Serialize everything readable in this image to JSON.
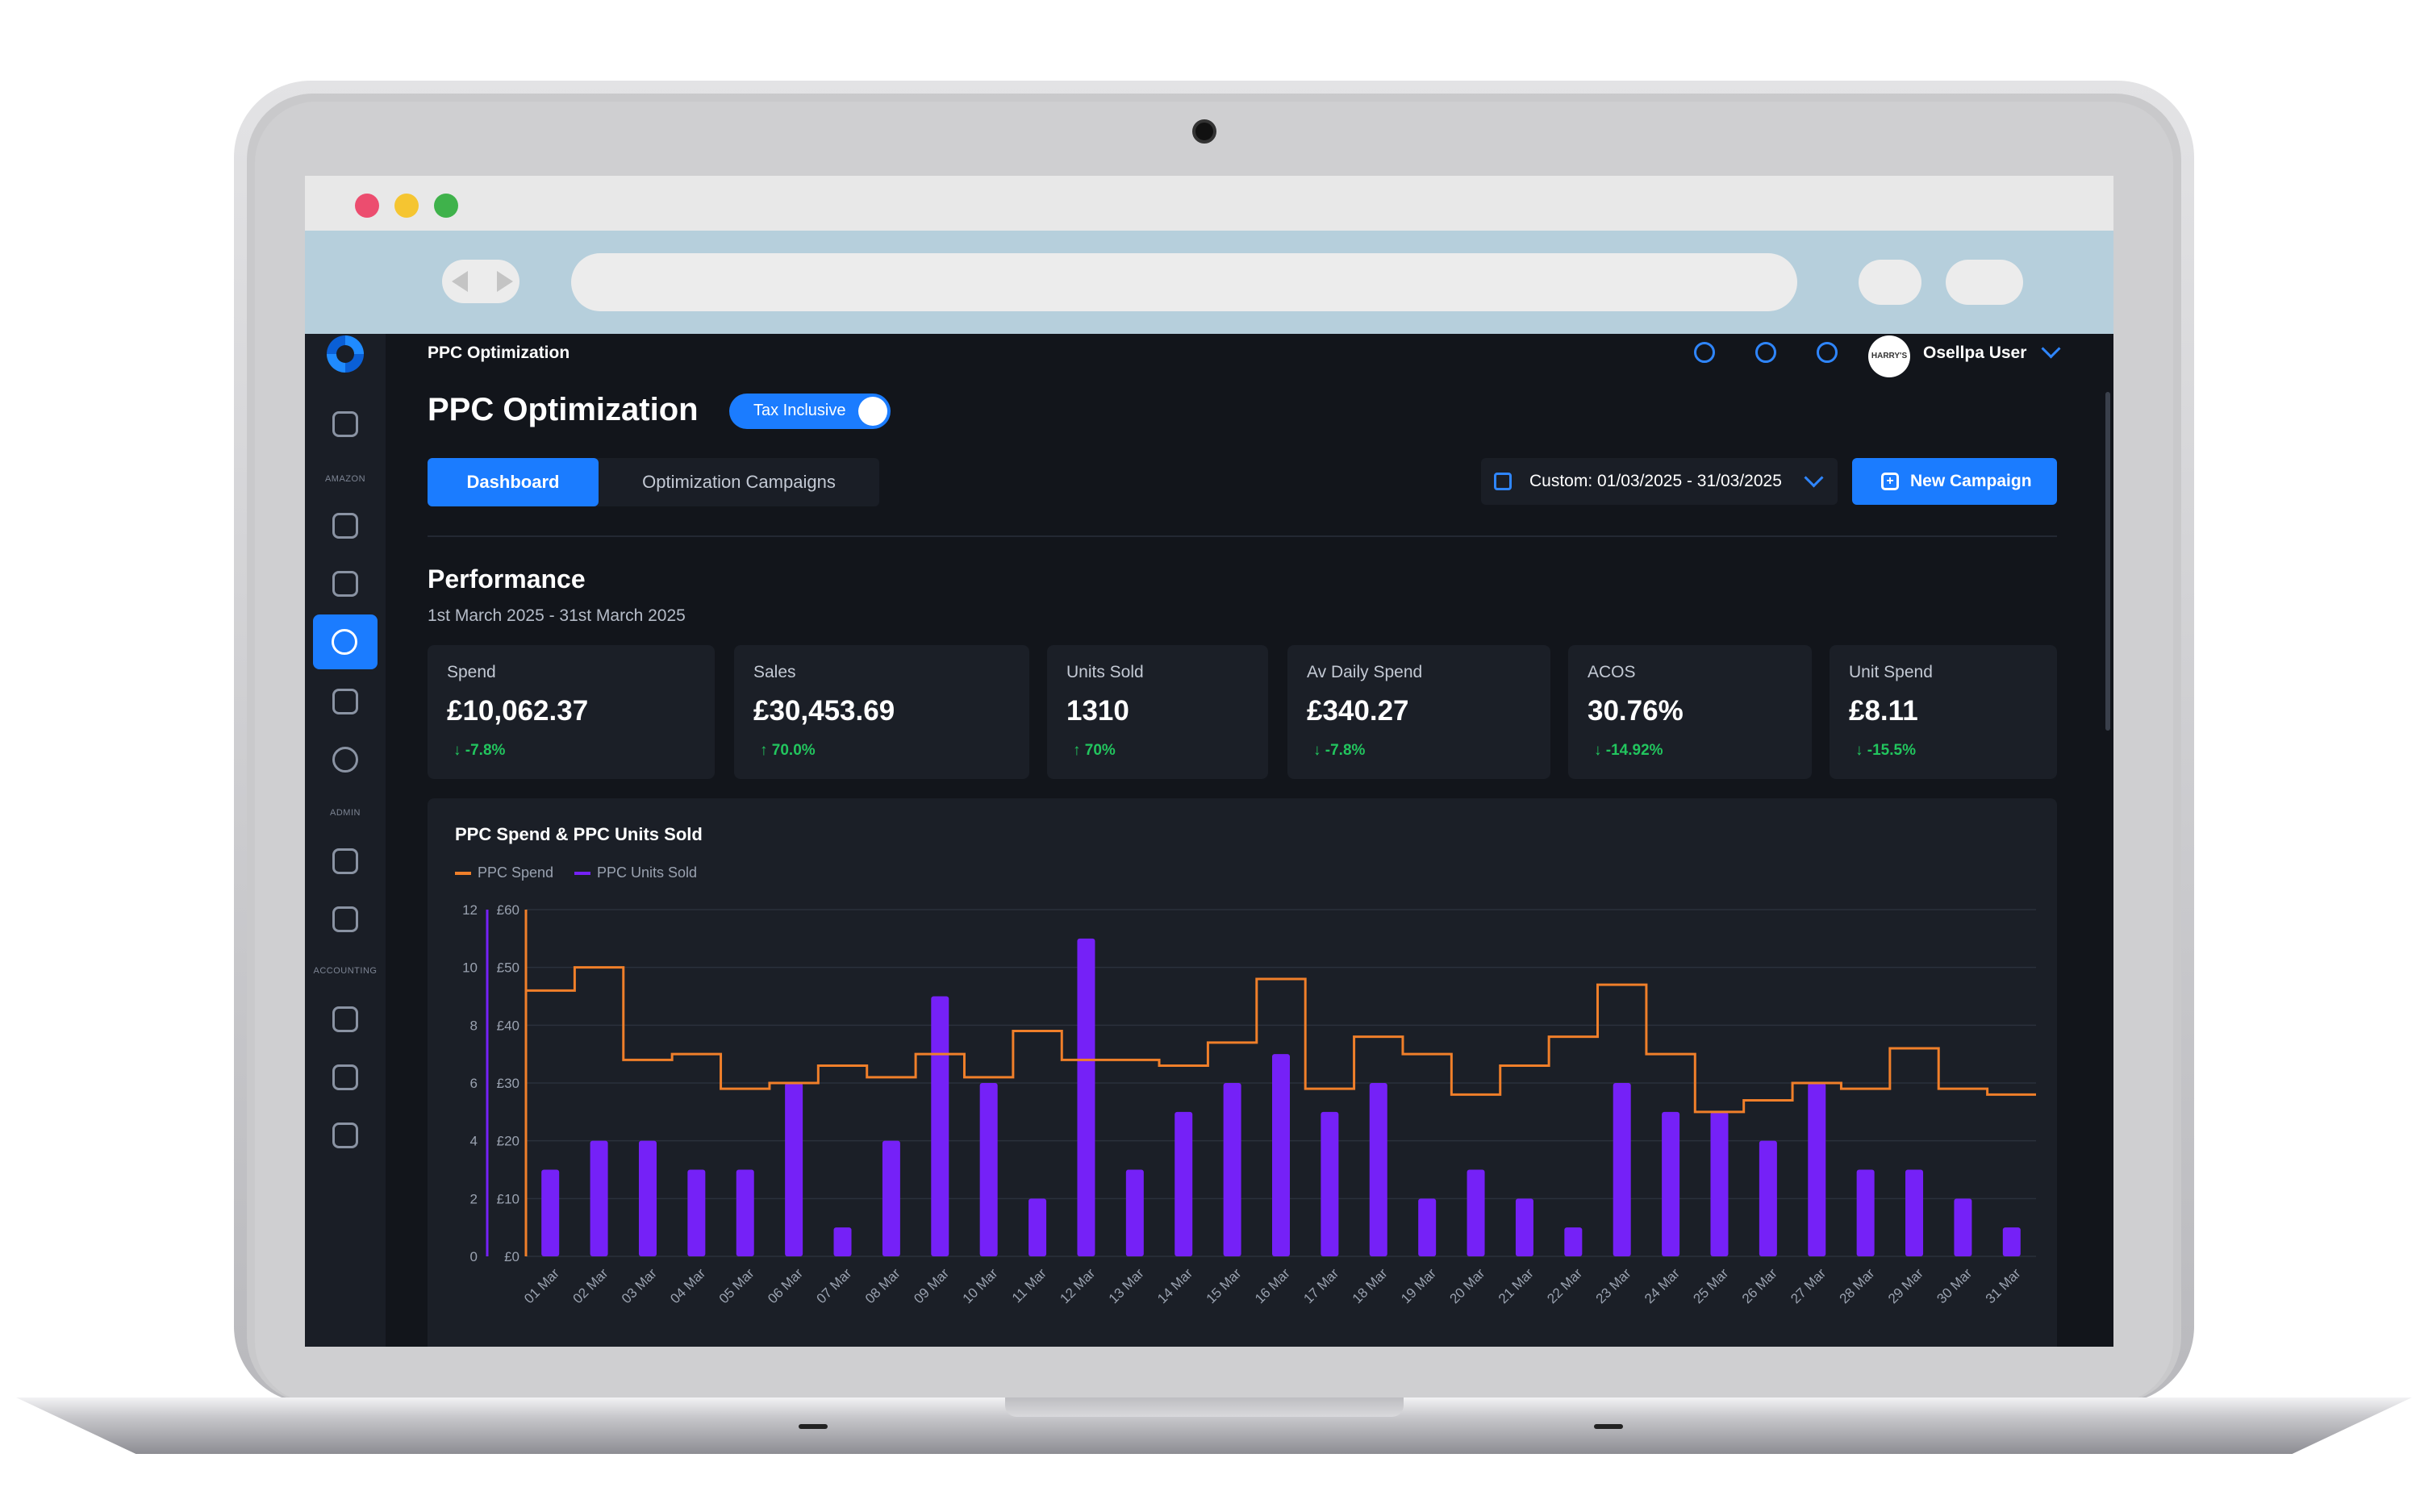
{
  "app": {
    "breadcrumb": "PPC Optimization",
    "page_title": "PPC Optimization",
    "tax_toggle": {
      "label": "Tax Inclusive",
      "on": true
    },
    "user": {
      "name": "Osellpa User",
      "avatar_text": "HARRY'S"
    },
    "sidebar_sections": {
      "amazon": "AMAZON",
      "admin": "ADMIN",
      "accounting": "ACCOUNTING"
    }
  },
  "tabs": [
    {
      "label": "Dashboard",
      "active": true
    },
    {
      "label": "Optimization Campaigns",
      "active": false
    }
  ],
  "date_range": "Custom: 01/03/2025 - 31/03/2025",
  "new_campaign": "New Campaign",
  "performance": {
    "title": "Performance",
    "subtitle": "1st March 2025 - 31st March 2025",
    "cards": [
      {
        "label": "Spend",
        "value": "£10,062.37",
        "delta": "↓ -7.8%"
      },
      {
        "label": "Sales",
        "value": "£30,453.69",
        "delta": "↑ 70.0%"
      },
      {
        "label": "Units Sold",
        "value": "1310",
        "delta": "↑ 70%"
      },
      {
        "label": "Av Daily Spend",
        "value": "£340.27",
        "delta": "↓ -7.8%"
      },
      {
        "label": "ACOS",
        "value": "30.76%",
        "delta": "↓ -14.92%"
      },
      {
        "label": "Unit Spend",
        "value": "£8.11",
        "delta": "↓ -15.5%"
      }
    ]
  },
  "colors": {
    "accent": "#1b7cff",
    "positive": "#22c55e",
    "spend_line": "#f07f2a",
    "units_bar": "#7521f7"
  },
  "chart_data": {
    "type": "bar",
    "title": "PPC Spend & PPC Units Sold",
    "categories": [
      "01 Mar",
      "02 Mar",
      "03 Mar",
      "04 Mar",
      "05 Mar",
      "06 Mar",
      "07 Mar",
      "08 Mar",
      "09 Mar",
      "10 Mar",
      "11 Mar",
      "12 Mar",
      "13 Mar",
      "14 Mar",
      "15 Mar",
      "16 Mar",
      "17 Mar",
      "18 Mar",
      "19 Mar",
      "20 Mar",
      "21 Mar",
      "22 Mar",
      "23 Mar",
      "24 Mar",
      "25 Mar",
      "26 Mar",
      "27 Mar",
      "28 Mar",
      "29 Mar",
      "30 Mar",
      "31 Mar"
    ],
    "series": [
      {
        "name": "PPC Units Sold",
        "type": "bar",
        "axis": "left",
        "values": [
          3,
          4,
          4,
          3,
          3,
          6,
          1,
          4,
          9,
          6,
          2,
          11,
          3,
          5,
          6,
          7,
          5,
          6,
          2,
          3,
          2,
          1,
          6,
          5,
          5,
          4,
          6,
          3,
          3,
          2,
          1
        ]
      },
      {
        "name": "PPC Spend",
        "type": "step-line",
        "axis": "right",
        "values": [
          46,
          50,
          34,
          35,
          29,
          30,
          33,
          31,
          35,
          31,
          39,
          34,
          34,
          33,
          37,
          48,
          29,
          38,
          35,
          28,
          33,
          38,
          47,
          35,
          25,
          27,
          30,
          29,
          36,
          29,
          28
        ]
      }
    ],
    "y_left": {
      "ticks": [
        "0",
        "2",
        "4",
        "6",
        "8",
        "10",
        "12"
      ],
      "range": [
        0,
        12
      ]
    },
    "y_right": {
      "ticks": [
        "£0",
        "£10",
        "£20",
        "£30",
        "£40",
        "£50",
        "£60"
      ],
      "range": [
        0,
        60
      ]
    },
    "grid": true,
    "legend_position": "top-left"
  }
}
